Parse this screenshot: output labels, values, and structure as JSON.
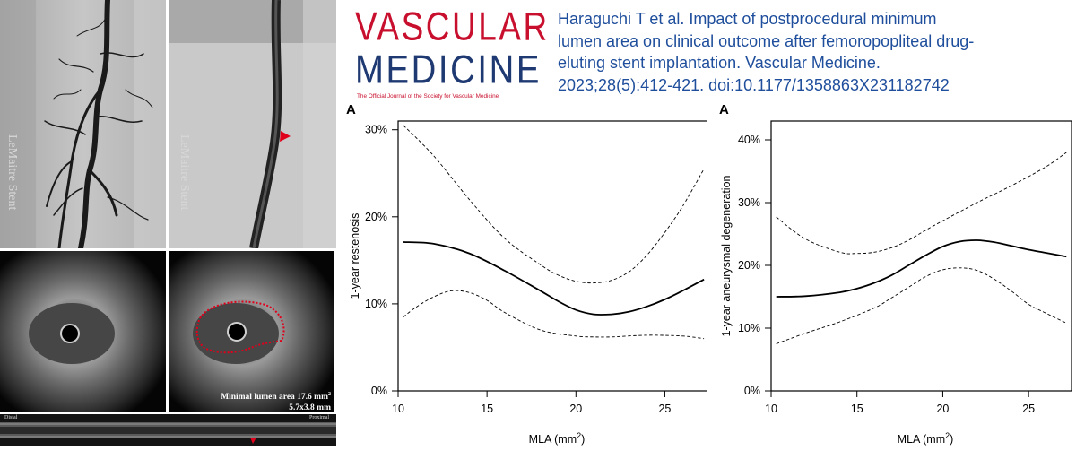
{
  "journal": {
    "name_line1": "VASCULAR",
    "name_line2": "MEDICINE",
    "tagline": "The Official Journal of the Society for Vascular Medicine"
  },
  "citation": {
    "line1": "Haraguchi T et al. Impact of postprocedural minimum",
    "line2": "lumen area on clinical outcome after femoropopliteal drug-",
    "line3": "eluting stent implantation. Vascular Medicine.",
    "line4": "2023;28(5):412-421. doi:10.1177/1358863X231182742"
  },
  "images": {
    "ivus_caption_line1": "Minimal lumen area 17.6 mm",
    "ivus_caption_sup": "2",
    "ivus_caption_line2": "5.7x3.8 mm",
    "strip_left_label": "Distal",
    "strip_right_label": "Proximal"
  },
  "colors": {
    "journal_red": "#c8102e",
    "journal_blue": "#1f3a73",
    "citation_blue": "#1f4e9c",
    "arrowhead_red": "#e0001b"
  },
  "chart_data": [
    {
      "type": "line",
      "panel_label": "A",
      "xlabel": "MLA (mm",
      "xlabel_sup": "2",
      "xlabel_close": ")",
      "ylabel": "1-year restenosis",
      "xlim": [
        10,
        27.5
      ],
      "ylim": [
        0,
        0.31
      ],
      "xticks": [
        10,
        15,
        20,
        25
      ],
      "yticks": [
        0,
        0.1,
        0.2,
        0.3
      ],
      "ytick_labels": [
        "0%",
        "10%",
        "20%",
        "30%"
      ],
      "grid": false,
      "series": [
        {
          "style": "solid",
          "x": [
            10.3,
            12,
            14,
            16,
            18,
            19,
            20,
            21,
            22,
            23,
            24,
            25,
            26,
            27.2
          ],
          "y": [
            0.171,
            0.169,
            0.158,
            0.138,
            0.115,
            0.103,
            0.093,
            0.088,
            0.088,
            0.091,
            0.097,
            0.105,
            0.115,
            0.128
          ]
        },
        {
          "style": "dashed",
          "x": [
            10.3,
            12,
            14,
            16,
            18,
            19,
            20,
            21,
            22,
            23,
            24,
            25,
            26,
            27.2
          ],
          "y": [
            0.305,
            0.27,
            0.22,
            0.175,
            0.145,
            0.133,
            0.126,
            0.124,
            0.127,
            0.137,
            0.156,
            0.182,
            0.212,
            0.255
          ]
        },
        {
          "style": "dashed",
          "x": [
            10.3,
            11,
            12,
            13,
            14,
            15,
            16,
            18,
            20,
            21,
            22,
            24,
            26,
            27.2
          ],
          "y": [
            0.085,
            0.096,
            0.108,
            0.115,
            0.113,
            0.104,
            0.09,
            0.07,
            0.063,
            0.062,
            0.062,
            0.064,
            0.063,
            0.06
          ]
        }
      ]
    },
    {
      "type": "line",
      "panel_label": "A",
      "xlabel": "MLA (mm",
      "xlabel_sup": "2",
      "xlabel_close": ")",
      "ylabel": "1-year aneurysmal degeneration",
      "xlim": [
        10,
        27.5
      ],
      "ylim": [
        0,
        0.43
      ],
      "xticks": [
        10,
        15,
        20,
        25
      ],
      "yticks": [
        0,
        0.1,
        0.2,
        0.3,
        0.4
      ],
      "ytick_labels": [
        "0%",
        "10%",
        "20%",
        "30%",
        "40%"
      ],
      "grid": false,
      "series": [
        {
          "style": "solid",
          "x": [
            10.3,
            12,
            14,
            15,
            16,
            17,
            18,
            19,
            20,
            21,
            22,
            23,
            24,
            25,
            26,
            27.2
          ],
          "y": [
            0.15,
            0.151,
            0.157,
            0.163,
            0.172,
            0.184,
            0.2,
            0.216,
            0.23,
            0.238,
            0.24,
            0.237,
            0.231,
            0.225,
            0.22,
            0.214
          ]
        },
        {
          "style": "dashed",
          "x": [
            10.3,
            12,
            14,
            15,
            16,
            17,
            18,
            19,
            20,
            22,
            24,
            26,
            27.2
          ],
          "y": [
            0.277,
            0.242,
            0.221,
            0.219,
            0.221,
            0.228,
            0.24,
            0.256,
            0.271,
            0.3,
            0.327,
            0.357,
            0.38
          ]
        },
        {
          "style": "dashed",
          "x": [
            10.3,
            12,
            14,
            16,
            17,
            18,
            19,
            20,
            21,
            22,
            23,
            24,
            25,
            26,
            27.2
          ],
          "y": [
            0.075,
            0.092,
            0.11,
            0.132,
            0.148,
            0.165,
            0.182,
            0.193,
            0.196,
            0.192,
            0.178,
            0.159,
            0.138,
            0.124,
            0.108
          ]
        }
      ]
    }
  ]
}
